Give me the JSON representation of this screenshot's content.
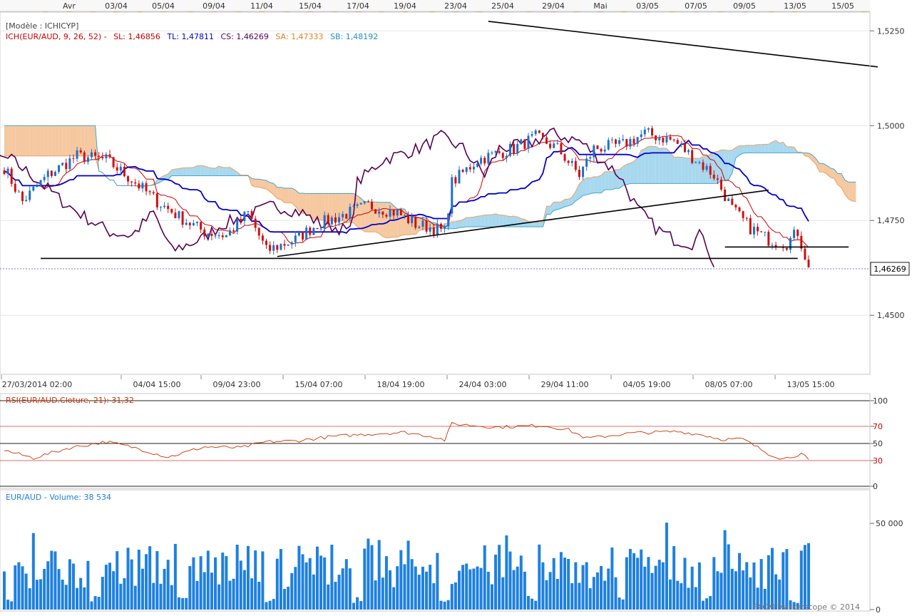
{
  "top_dates": [
    "Avr",
    "03/04",
    "05/04",
    "09/04",
    "11/04",
    "15/04",
    "17/04",
    "19/04",
    "23/04",
    "25/04",
    "29/04",
    "Mai",
    "03/05",
    "07/05",
    "09/05",
    "13/05",
    "15/05"
  ],
  "bottom_dates": [
    "27/03/2014 02:00",
    "04/04 15:00",
    "09/04 23:00",
    "15/04 07:00",
    "18/04 19:00",
    "24/04 03:00",
    "29/04 11:00",
    "04/05 19:00",
    "08/05 07:00",
    "13/05 15:00"
  ],
  "main": {
    "model_label": "[Modèle : ICHICYP]",
    "legend": [
      {
        "text": "ICH(EUR/AUD, 9, 26, 52) -",
        "color": "#cc0000"
      },
      {
        "text": "SL: 1,46856",
        "color": "#cc0000"
      },
      {
        "text": "TL: 1,47811",
        "color": "#0000cc"
      },
      {
        "text": "CS: 1,46269",
        "color": "#550055"
      },
      {
        "text": "SA: 1,47333",
        "color": "#e08020"
      },
      {
        "text": "SB: 1,48192",
        "color": "#2090c0"
      }
    ],
    "price_ticks": [
      "1,5250",
      "1,5000",
      "1,4750",
      "1,4500"
    ],
    "current_price": "1,46269"
  },
  "rsi": {
    "label": "RSI(EUR/AUD.Cloture, 21): 31,32",
    "levels": [
      "100",
      "70",
      "50",
      "30",
      "0"
    ]
  },
  "volume": {
    "label": "EUR/AUD - Volume: 38 534",
    "ticks": [
      "50 000",
      "0"
    ]
  },
  "copyright": "FXCM Marketscope © 2014",
  "colors": {
    "up": "#1e6fd0",
    "down": "#d01010",
    "tenkan": "#cc0000",
    "kijun": "#0000cc",
    "chikou": "#550055",
    "senkou_a": "#f0a060",
    "senkou_b": "#40a8d0",
    "cloud_bull": "#a8d8ee",
    "cloud_bear": "#f5c8a0",
    "rsi": "#cc3300",
    "volume": "#1e80e0"
  },
  "chart_data": [
    {
      "type": "candlestick",
      "title": "ICH(EUR/AUD, 9, 26, 52)",
      "ylim": [
        1.435,
        1.529
      ],
      "y_ticks": [
        1.525,
        1.5,
        1.475,
        1.45
      ],
      "current_price": 1.46269,
      "series": [
        {
          "name": "SL",
          "last": 1.46856
        },
        {
          "name": "TL",
          "last": 1.47811
        },
        {
          "name": "CS",
          "last": 1.46269
        },
        {
          "name": "SA",
          "last": 1.47333
        },
        {
          "name": "SB",
          "last": 1.48192
        }
      ],
      "close_path": [
        [
          0,
          1.489
        ],
        [
          5,
          1.48
        ],
        [
          12,
          1.487
        ],
        [
          20,
          1.492
        ],
        [
          28,
          1.491
        ],
        [
          36,
          1.485
        ],
        [
          42,
          1.48
        ],
        [
          48,
          1.476
        ],
        [
          55,
          1.472
        ],
        [
          61,
          1.471
        ],
        [
          67,
          1.477
        ],
        [
          72,
          1.467
        ],
        [
          80,
          1.47
        ],
        [
          86,
          1.474
        ],
        [
          92,
          1.476
        ],
        [
          100,
          1.479
        ],
        [
          108,
          1.477
        ],
        [
          113,
          1.474
        ],
        [
          118,
          1.473
        ],
        [
          121,
          1.472
        ],
        [
          123,
          1.485
        ],
        [
          130,
          1.491
        ],
        [
          140,
          1.494
        ],
        [
          146,
          1.497
        ],
        [
          152,
          1.494
        ],
        [
          158,
          1.487
        ],
        [
          162,
          1.494
        ],
        [
          170,
          1.495
        ],
        [
          176,
          1.498
        ],
        [
          184,
          1.496
        ],
        [
          190,
          1.491
        ],
        [
          195,
          1.487
        ],
        [
          200,
          1.478
        ],
        [
          205,
          1.473
        ],
        [
          210,
          1.47
        ],
        [
          215,
          1.469
        ],
        [
          218,
          1.472
        ],
        [
          221,
          1.4626
        ]
      ]
    },
    {
      "type": "line",
      "title": "RSI(EUR/AUD.Cloture, 21)",
      "ylim": [
        0,
        100
      ],
      "y_ticks": [
        100,
        70,
        50,
        30,
        0
      ],
      "last": 31.32,
      "path": [
        [
          0,
          42
        ],
        [
          8,
          33
        ],
        [
          18,
          45
        ],
        [
          28,
          52
        ],
        [
          36,
          45
        ],
        [
          45,
          34
        ],
        [
          55,
          46
        ],
        [
          65,
          45
        ],
        [
          72,
          52
        ],
        [
          80,
          53
        ],
        [
          90,
          58
        ],
        [
          100,
          61
        ],
        [
          110,
          63
        ],
        [
          118,
          58
        ],
        [
          121,
          54
        ],
        [
          123,
          73
        ],
        [
          135,
          69
        ],
        [
          148,
          71
        ],
        [
          155,
          66
        ],
        [
          160,
          56
        ],
        [
          172,
          62
        ],
        [
          185,
          64
        ],
        [
          192,
          60
        ],
        [
          197,
          55
        ],
        [
          203,
          55
        ],
        [
          210,
          38
        ],
        [
          214,
          32
        ],
        [
          219,
          38
        ],
        [
          221,
          31
        ]
      ]
    },
    {
      "type": "bar",
      "title": "EUR/AUD - Volume",
      "ylim": [
        0,
        62000
      ],
      "y_ticks": [
        50000,
        0
      ],
      "last": 38534
    }
  ]
}
